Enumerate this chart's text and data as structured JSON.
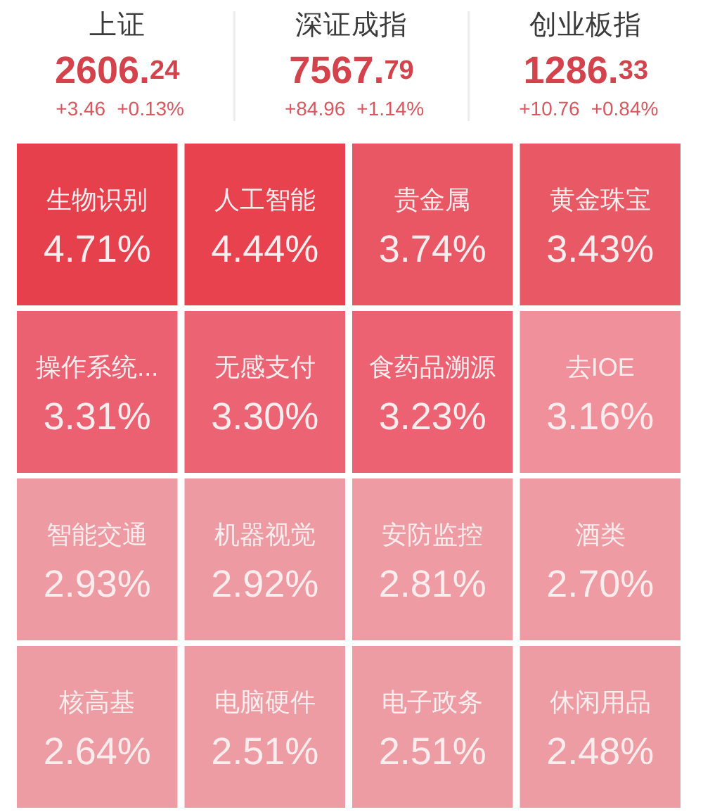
{
  "chart_data": [
    {
      "type": "other",
      "categories": [
        "上证",
        "深证成指",
        "创业板指"
      ],
      "series": [
        {
          "color": "#d4434c",
          "values": [
            2606.24,
            7567.79,
            1286.33
          ],
          "value_labels": [
            "2606.24",
            "7567.79",
            "1286.33"
          ]
        },
        {
          "color": "#d9575d",
          "values": [
            3.46,
            84.96,
            10.76
          ],
          "value_labels": [
            "+3.46",
            "+84.96",
            "+10.76"
          ]
        },
        {
          "color": "#d9575d",
          "values": [
            0.13,
            1.14,
            0.84
          ],
          "value_labels": [
            "+0.13%",
            "+1.14%",
            "+0.84%"
          ]
        }
      ]
    },
    {
      "type": "other",
      "categories": [
        "生物识别",
        "人工智能",
        "贵金属",
        "黄金珠宝",
        "操作系统...",
        "无感支付",
        "食药品溯源",
        "去IOE",
        "智能交通",
        "机器视觉",
        "安防监控",
        "酒类",
        "核高基",
        "电脑硬件",
        "电子政务",
        "休闲用品"
      ],
      "values": [
        4.71,
        4.44,
        3.74,
        3.43,
        3.31,
        3.3,
        3.23,
        3.16,
        2.93,
        2.92,
        2.81,
        2.7,
        2.64,
        2.51,
        2.51,
        2.48
      ],
      "value_labels": [
        "4.71%",
        "4.44%",
        "3.74%",
        "3.43%",
        "3.31%",
        "3.30%",
        "3.23%",
        "3.16%",
        "2.93%",
        "2.92%",
        "2.81%",
        "2.70%",
        "2.64%",
        "2.51%",
        "2.51%",
        "2.48%"
      ],
      "colors": [
        "#e7404d",
        "#e7424e",
        "#e95764",
        "#e95965",
        "#ec6172",
        "#ec6373",
        "#ec6272",
        "#ef909a",
        "#ee9aa3",
        "#ee9aa3",
        "#ee9ba3",
        "#ee9ba3",
        "#ee9ca4",
        "#ee9ca4",
        "#ee9ca4",
        "#ee9ca4"
      ]
    }
  ]
}
